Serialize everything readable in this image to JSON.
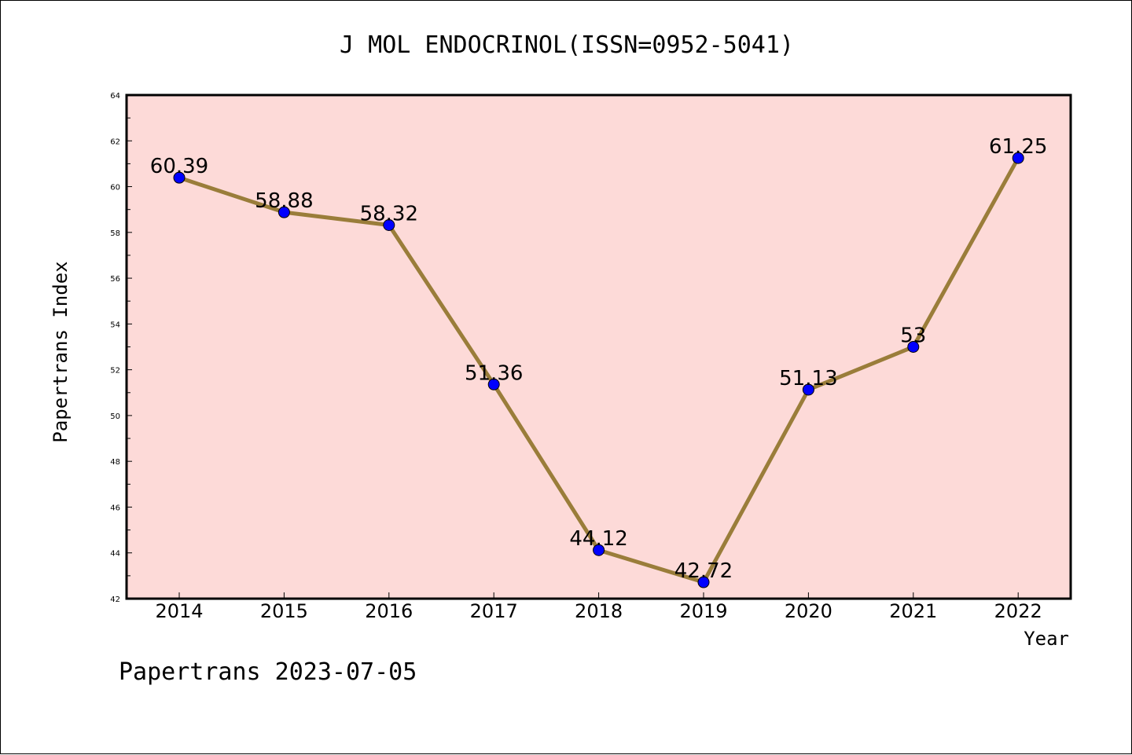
{
  "title": "J MOL ENDOCRINOL(ISSN=0952-5041)",
  "footer": "Papertrans 2023-07-05",
  "colors": {
    "plot_background": "#fddad8",
    "line": "#9a7d3a",
    "marker": "#0000ff",
    "axis": "#000000"
  },
  "chart_data": {
    "type": "line",
    "title": "J MOL ENDOCRINOL(ISSN=0952-5041)",
    "xlabel": "Year",
    "ylabel": "Papertrans Index",
    "ylim": [
      42,
      64
    ],
    "yticks": [
      42,
      44,
      46,
      48,
      50,
      52,
      54,
      56,
      58,
      60,
      62,
      64
    ],
    "categories": [
      "2014",
      "2015",
      "2016",
      "2017",
      "2018",
      "2019",
      "2020",
      "2021",
      "2022"
    ],
    "values": [
      60.39,
      58.88,
      58.32,
      51.36,
      44.12,
      42.72,
      51.13,
      53,
      61.25
    ],
    "data_labels": [
      "60.39",
      "58.88",
      "58.32",
      "51.36",
      "44.12",
      "42.72",
      "51.13",
      "53",
      "61.25"
    ],
    "grid": false,
    "legend": "none"
  }
}
